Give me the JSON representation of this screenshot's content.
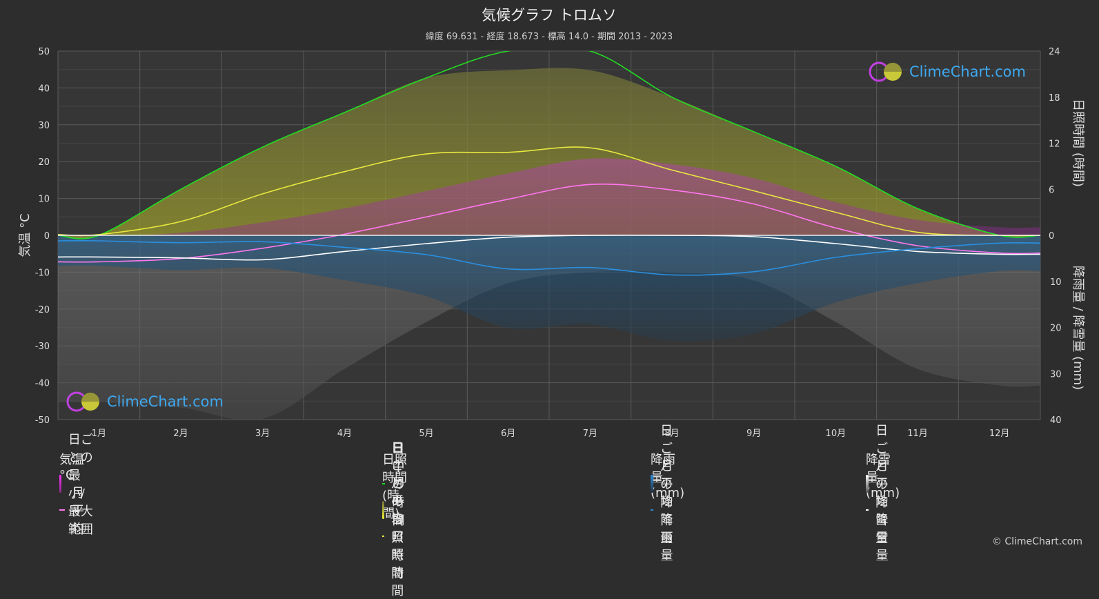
{
  "chart_data": {
    "type": "area",
    "title": "気候グラフ トロムソ",
    "subtitle": "緯度 69.631 - 経度 18.673 - 標高 14.0 - 期間 2013 - 2023",
    "categories": [
      "1月",
      "2月",
      "3月",
      "4月",
      "5月",
      "6月",
      "7月",
      "8月",
      "9月",
      "10月",
      "11月",
      "12月"
    ],
    "y_left": {
      "label": "気温 °C",
      "range": [
        -50,
        50
      ],
      "ticks": [
        50,
        40,
        30,
        20,
        10,
        0,
        -10,
        -20,
        -30,
        -40,
        -50
      ]
    },
    "y_right_top": {
      "label": "日照時間 (時間)",
      "range": [
        0,
        24
      ],
      "ticks": [
        24,
        18,
        12,
        6,
        0
      ]
    },
    "y_right_bottom": {
      "label": "降雨量 / 降雪量 (mm)",
      "range": [
        0,
        40
      ],
      "ticks": [
        10,
        20,
        30,
        40
      ]
    },
    "grid": true,
    "series": [
      {
        "name": "日中の時間",
        "axis": "sunshine",
        "color": "#22dd22",
        "values": [
          0.0,
          6.0,
          11.5,
          16.0,
          20.5,
          24.0,
          24.0,
          18.0,
          13.5,
          9.0,
          3.5,
          0.0
        ]
      },
      {
        "name": "月平均日照時間",
        "axis": "sunshine",
        "color": "#e8e840",
        "values": [
          0.1,
          1.8,
          5.4,
          8.3,
          10.6,
          10.8,
          11.4,
          8.5,
          5.8,
          3.0,
          0.4,
          0.0
        ]
      },
      {
        "name": "月平均",
        "axis": "temperature",
        "color": "#ff77ee",
        "values": [
          -7.2,
          -6.3,
          -3.5,
          0.3,
          5.0,
          9.8,
          13.8,
          12.3,
          8.5,
          2.0,
          -2.8,
          -4.8
        ]
      },
      {
        "name": "月平均降雪量",
        "axis": "precipitation",
        "color": "#ffffff",
        "values": [
          4.7,
          4.9,
          5.3,
          3.5,
          1.8,
          0.4,
          0.0,
          0.0,
          0.3,
          1.8,
          3.5,
          4.1
        ]
      },
      {
        "name": "月平均降雨量",
        "axis": "precipitation",
        "color": "#2a8fe0",
        "values": [
          1.2,
          1.6,
          1.4,
          2.6,
          4.2,
          7.3,
          7.0,
          8.6,
          7.9,
          4.8,
          2.9,
          1.7
        ]
      }
    ]
  },
  "legend": {
    "temperature": {
      "title": "気温 °C",
      "range_label": "日ごとの最小/最大範囲",
      "avg_label": "月平均"
    },
    "sunshine": {
      "title": "日照時間 (時間)",
      "daylight_label": "日中の時間",
      "daily_label": "日ごとの日照時間",
      "avg_label": "月平均日照時間"
    },
    "rain": {
      "title": "降雨量 (mm)",
      "daily_label": "日ごとの降雨量",
      "avg_label": "月平均降雨量"
    },
    "snow": {
      "title": "降雪量 (mm)",
      "daily_label": "日ごとの降雪量",
      "avg_label": "月平均降雪量"
    }
  },
  "brand": {
    "name": "ClimeChart.com",
    "copyright": "© ClimeChart.com"
  }
}
